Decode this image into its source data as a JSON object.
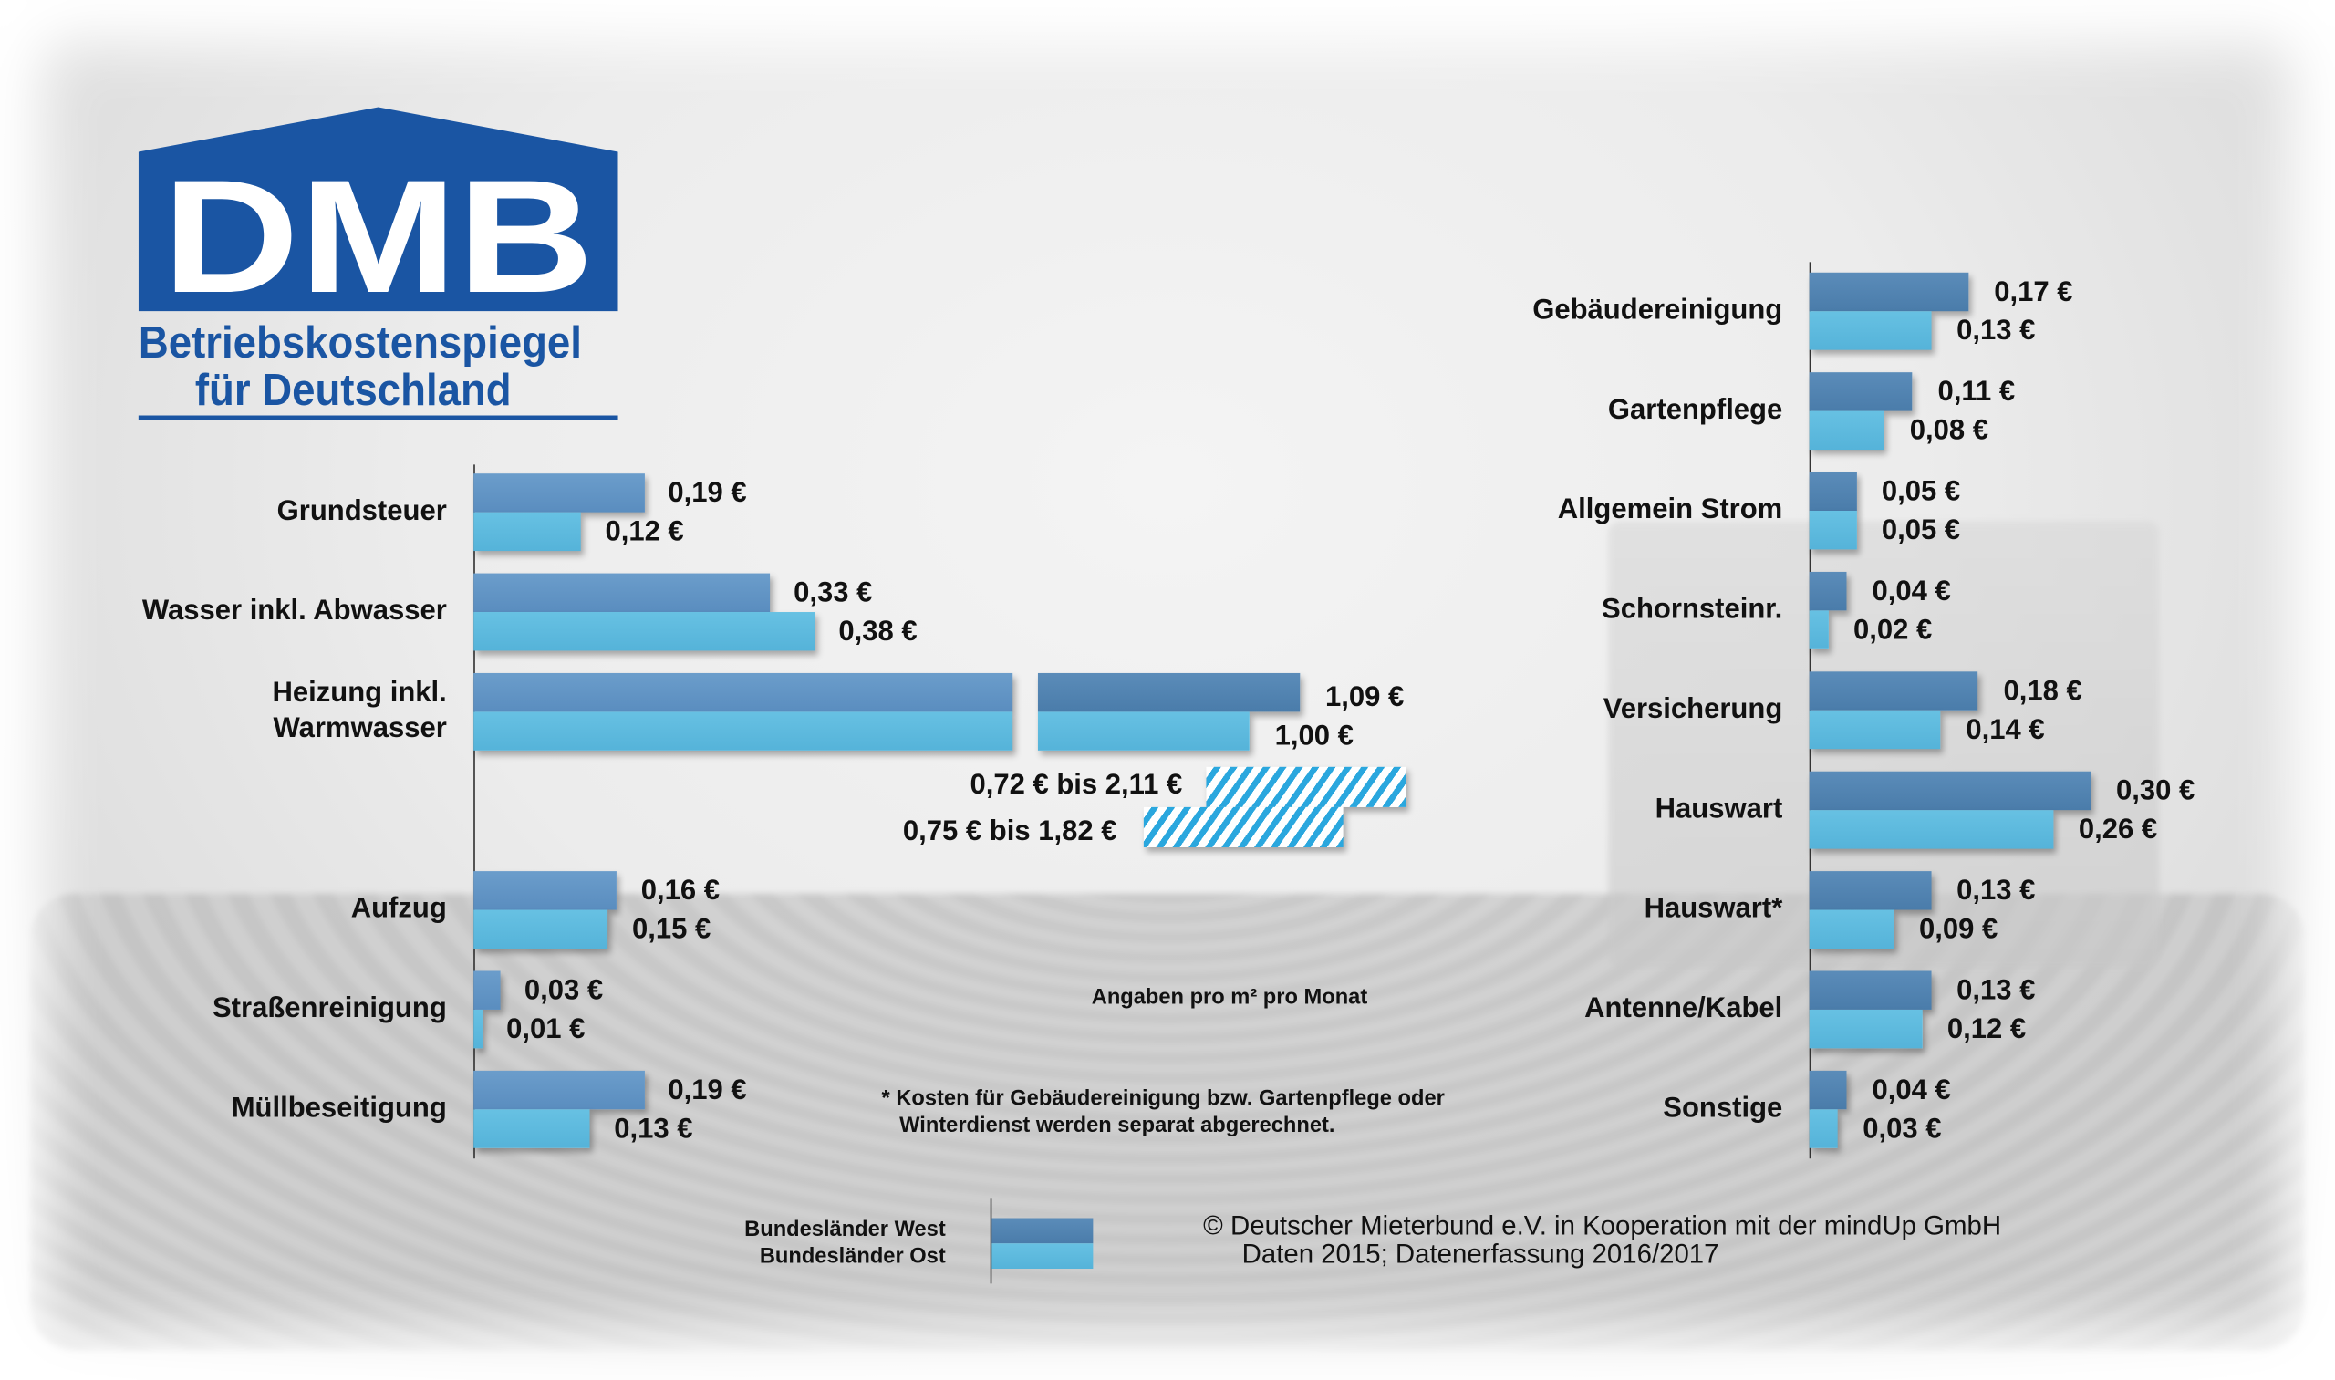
{
  "logo": {
    "brand": "DMB",
    "line1": "Betriebskostenspiegel",
    "line2": "für Deutschland",
    "color": "#1a55a3"
  },
  "chart_data": {
    "type": "bar",
    "orientation": "horizontal",
    "unit": "€ pro m² pro Monat",
    "series_names": [
      "Bundesländer West",
      "Bundesländer Ost"
    ],
    "colors": {
      "west": "#5a8dbf",
      "ost": "#55b3d9"
    },
    "left": [
      {
        "category": "Grundsteuer",
        "west": 0.19,
        "ost": 0.12,
        "west_label": "0,19 €",
        "ost_label": "0,12 €"
      },
      {
        "category": "Wasser inkl. Abwasser",
        "west": 0.33,
        "ost": 0.38,
        "west_label": "0,33 €",
        "ost_label": "0,38 €"
      },
      {
        "category": "Heizung inkl. Warmwasser",
        "category_lines": [
          "Heizung inkl.",
          "Warmwasser"
        ],
        "west": 1.09,
        "ost": 1.0,
        "west_label": "1,09 €",
        "ost_label": "1,00 €",
        "broken_axis": true,
        "range_west": [
          0.72,
          2.11
        ],
        "range_ost": [
          0.75,
          1.82
        ],
        "range_west_label": "0,72 € bis 2,11 €",
        "range_ost_label": "0,75 € bis 1,82 €"
      },
      {
        "category": "Aufzug",
        "west": 0.16,
        "ost": 0.15,
        "west_label": "0,16 €",
        "ost_label": "0,15 €"
      },
      {
        "category": "Straßenreinigung",
        "west": 0.03,
        "ost": 0.01,
        "west_label": "0,03 €",
        "ost_label": "0,01 €"
      },
      {
        "category": "Müllbeseitigung",
        "west": 0.19,
        "ost": 0.13,
        "west_label": "0,19 €",
        "ost_label": "0,13 €"
      }
    ],
    "right": [
      {
        "category": "Gebäudereinigung",
        "west": 0.17,
        "ost": 0.13,
        "west_label": "0,17 €",
        "ost_label": "0,13 €"
      },
      {
        "category": "Gartenpflege",
        "west": 0.11,
        "ost": 0.08,
        "west_label": "0,11 €",
        "ost_label": "0,08 €"
      },
      {
        "category": "Allgemein Strom",
        "west": 0.05,
        "ost": 0.05,
        "west_label": "0,05 €",
        "ost_label": "0,05 €"
      },
      {
        "category": "Schornsteinr.",
        "west": 0.04,
        "ost": 0.02,
        "west_label": "0,04 €",
        "ost_label": "0,02 €"
      },
      {
        "category": "Versicherung",
        "west": 0.18,
        "ost": 0.14,
        "west_label": "0,18 €",
        "ost_label": "0,14 €"
      },
      {
        "category": "Hauswart",
        "west": 0.3,
        "ost": 0.26,
        "west_label": "0,30 €",
        "ost_label": "0,26 €"
      },
      {
        "category": "Hauswart*",
        "west": 0.13,
        "ost": 0.09,
        "west_label": "0,13 €",
        "ost_label": "0,09 €"
      },
      {
        "category": "Antenne/Kabel",
        "west": 0.13,
        "ost": 0.12,
        "west_label": "0,13 €",
        "ost_label": "0,12 €"
      },
      {
        "category": "Sonstige",
        "west": 0.04,
        "ost": 0.03,
        "west_label": "0,04 €",
        "ost_label": "0,03 €"
      }
    ]
  },
  "notes": {
    "unit_note": "Angaben pro m² pro Monat",
    "footnote_line1": "* Kosten für Gebäudereinigung bzw. Gartenpflege oder",
    "footnote_line2": "Winterdienst werden separat abgerechnet."
  },
  "legend": {
    "west": "Bundesländer West",
    "ost": "Bundesländer Ost"
  },
  "credits": {
    "line1": "©  Deutscher Mieterbund e.V. in Kooperation mit der mindUp GmbH",
    "line2": "Daten 2015; Datenerfassung 2016/2017"
  }
}
